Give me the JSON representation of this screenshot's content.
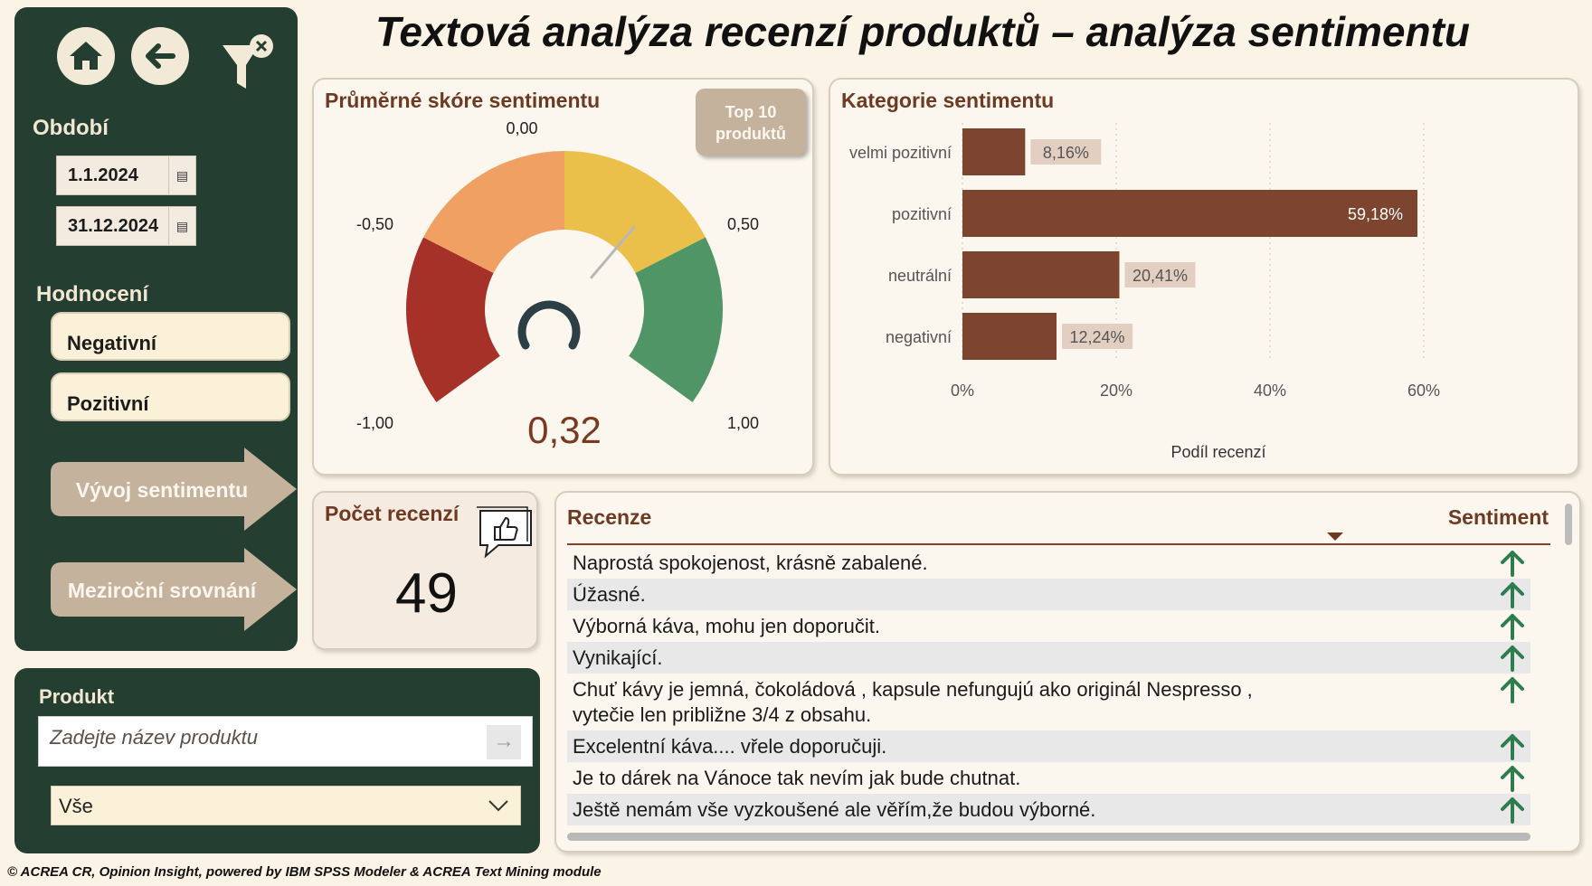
{
  "title": "Textová analýza recenzí produktů – analýza sentimentu",
  "sidebar": {
    "period_label": "Období",
    "date_from": "1.1.2024",
    "date_to": "31.12.2024",
    "rating_label": "Hodnocení",
    "rating_options": [
      "Negativní",
      "Pozitivní"
    ],
    "nav_buttons": [
      "Vývoj sentimentu",
      "Meziroční srovnání"
    ]
  },
  "product": {
    "label": "Produkt",
    "placeholder": "Zadejte název produktu",
    "selected": "Vše"
  },
  "gauge": {
    "title": "Průměrné skóre sentimentu",
    "button": {
      "line1": "Top 10",
      "line2": "produktů"
    },
    "value": 0.32,
    "value_label": "0,32",
    "min": -1,
    "max": 1,
    "tick_labels": {
      "min": "-1,00",
      "low": "-0,50",
      "mid": "0,00",
      "high": "0,50",
      "max": "1,00"
    },
    "colors": [
      "#a63128",
      "#f0a063",
      "#ebc04a",
      "#4f9565"
    ]
  },
  "chart_data": {
    "type": "bar",
    "orientation": "horizontal",
    "title": "Kategorie sentimentu",
    "categories": [
      "velmi pozitivní",
      "pozitivní",
      "neutrální",
      "negativní"
    ],
    "values": [
      8.16,
      59.18,
      20.41,
      12.24
    ],
    "data_labels": [
      "8,16%",
      "59,18%",
      "20,41%",
      "12,24%"
    ],
    "xlabel": "Podíl recenzí",
    "xlim": [
      0,
      60
    ],
    "xticks": [
      0,
      20,
      40,
      60
    ],
    "xtick_labels": [
      "0%",
      "20%",
      "40%",
      "60%"
    ],
    "grid": true,
    "bar_color": "#7d4430"
  },
  "count": {
    "title": "Počet recenzí",
    "value": "49"
  },
  "table": {
    "col_review": "Recenze",
    "col_sentiment": "Sentiment",
    "rows": [
      "Naprostá spokojenost, krásně zabalené.",
      "Úžasné.",
      "Výborná káva, mohu jen doporučit.",
      "Vynikající.",
      "Chuť kávy je jemná, čokoládová , kapsule nefungujú ako originál Nespresso ,\nvytečie len približne 3/4 z obsahu.",
      "Excelentní káva.... vřele doporučuji.",
      "Je to dárek na Vánoce tak nevím jak bude chutnat.",
      "Ještě nemám vše vyzkoušené ale věřím,že budou výborné."
    ],
    "sentiment_icon": "arrow-up-icon",
    "sentiment_color": "#2f7d4f"
  },
  "footer": "© ACREA CR, Opinion Insight, powered by IBM SPSS Modeler & ACREA Text Mining module"
}
